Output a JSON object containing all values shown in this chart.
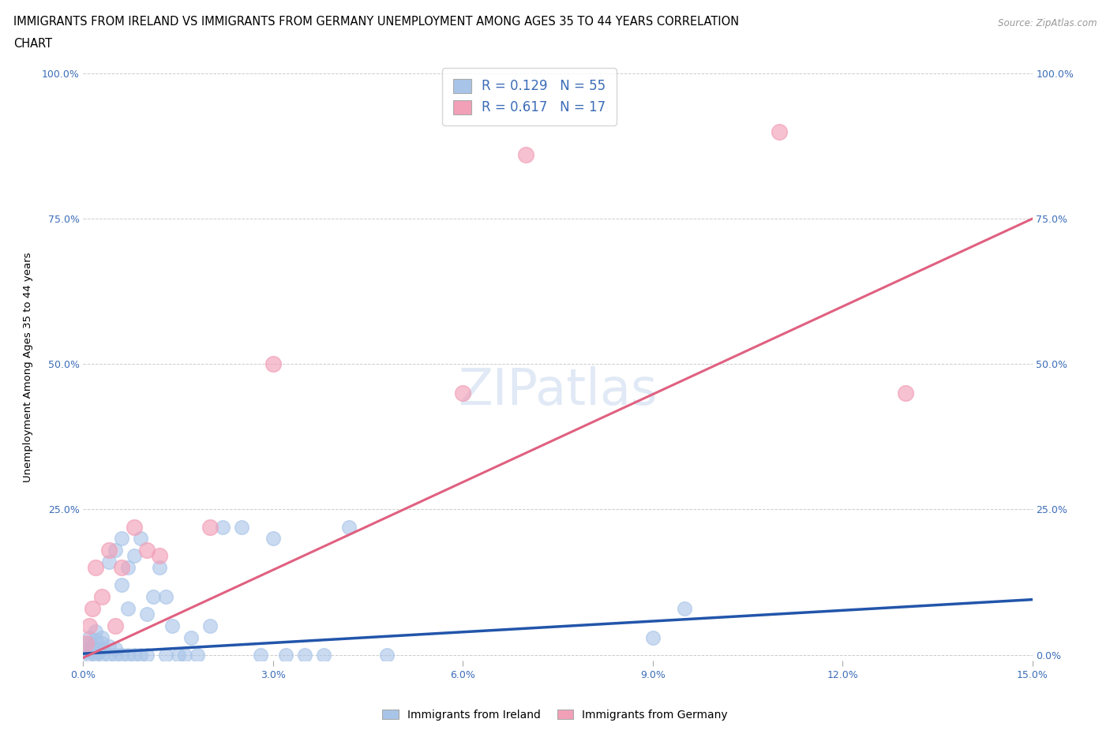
{
  "title_line1": "IMMIGRANTS FROM IRELAND VS IMMIGRANTS FROM GERMANY UNEMPLOYMENT AMONG AGES 35 TO 44 YEARS CORRELATION",
  "title_line2": "CHART",
  "source": "Source: ZipAtlas.com",
  "ylabel": "Unemployment Among Ages 35 to 44 years",
  "xlim": [
    0.0,
    0.15
  ],
  "ylim": [
    -0.01,
    1.0
  ],
  "ireland_R": 0.129,
  "ireland_N": 55,
  "germany_R": 0.617,
  "germany_N": 17,
  "ireland_color": "#a8c4e8",
  "germany_color": "#f2a0b8",
  "ireland_line_color": "#2255aa",
  "germany_line_color": "#e06080",
  "watermark_color": "#c8d8ee",
  "ireland_trend_x0": 0.0,
  "ireland_trend_y0": 0.002,
  "ireland_trend_x1": 0.15,
  "ireland_trend_y1": 0.095,
  "germany_trend_x0": 0.0,
  "germany_trend_y0": -0.005,
  "germany_trend_x1": 0.15,
  "germany_trend_y1": 0.75,
  "ireland_x": [
    0.0005,
    0.0007,
    0.001,
    0.001,
    0.001,
    0.0015,
    0.0015,
    0.002,
    0.002,
    0.002,
    0.002,
    0.0025,
    0.003,
    0.003,
    0.003,
    0.003,
    0.004,
    0.004,
    0.004,
    0.005,
    0.005,
    0.005,
    0.006,
    0.006,
    0.006,
    0.007,
    0.007,
    0.007,
    0.008,
    0.008,
    0.009,
    0.009,
    0.01,
    0.01,
    0.011,
    0.012,
    0.013,
    0.013,
    0.014,
    0.015,
    0.016,
    0.017,
    0.018,
    0.02,
    0.022,
    0.025,
    0.028,
    0.03,
    0.032,
    0.035,
    0.038,
    0.042,
    0.048,
    0.09,
    0.095
  ],
  "ireland_y": [
    0.005,
    0.01,
    0.0,
    0.02,
    0.03,
    0.005,
    0.015,
    0.0,
    0.01,
    0.025,
    0.04,
    0.005,
    0.0,
    0.01,
    0.02,
    0.03,
    0.0,
    0.015,
    0.16,
    0.0,
    0.01,
    0.18,
    0.0,
    0.12,
    0.2,
    0.0,
    0.08,
    0.15,
    0.0,
    0.17,
    0.0,
    0.2,
    0.0,
    0.07,
    0.1,
    0.15,
    0.0,
    0.1,
    0.05,
    0.0,
    0.0,
    0.03,
    0.0,
    0.05,
    0.22,
    0.22,
    0.0,
    0.2,
    0.0,
    0.0,
    0.0,
    0.22,
    0.0,
    0.03,
    0.08
  ],
  "germany_x": [
    0.0005,
    0.001,
    0.0015,
    0.002,
    0.003,
    0.004,
    0.005,
    0.006,
    0.008,
    0.01,
    0.012,
    0.02,
    0.03,
    0.06,
    0.07,
    0.11,
    0.13
  ],
  "germany_y": [
    0.02,
    0.05,
    0.08,
    0.15,
    0.1,
    0.18,
    0.05,
    0.15,
    0.22,
    0.18,
    0.17,
    0.22,
    0.5,
    0.45,
    0.86,
    0.9,
    0.45
  ]
}
